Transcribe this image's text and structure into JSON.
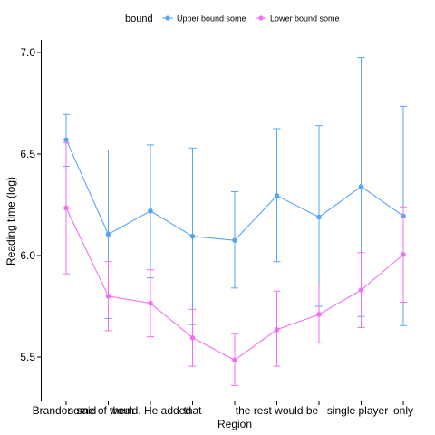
{
  "chart_data": {
    "type": "line",
    "xlabel": "Region",
    "ylabel": "Reading time (log)",
    "legend_title": "bound",
    "legend_position": "top",
    "grid": false,
    "ylim": [
      5.28,
      7.05
    ],
    "y_ticks": [
      "5.5",
      "6.0",
      "6.5",
      "7.0"
    ],
    "categories": [
      "Brandon said",
      "some of them",
      "would. He added",
      "that",
      "the rest would be",
      "single player",
      "only",
      "",
      ""
    ],
    "category_labels": [
      "Brandon said",
      "some of them",
      "would. He added",
      "that",
      "the rest would be",
      "single player",
      "only"
    ],
    "series": [
      {
        "name": "Upper bound some",
        "color": "#56a5f5",
        "values": [
          6.57,
          6.105,
          6.22,
          6.095,
          6.075,
          6.295,
          6.19,
          6.34,
          6.195
        ],
        "err_low": [
          6.44,
          5.69,
          5.89,
          5.66,
          5.84,
          5.97,
          5.75,
          5.7,
          5.655
        ],
        "err_high": [
          6.695,
          6.52,
          6.545,
          6.53,
          6.315,
          6.625,
          6.64,
          6.975,
          6.735
        ]
      },
      {
        "name": "Lower bound some",
        "color": "#f46ef4",
        "values": [
          6.235,
          5.8,
          5.765,
          5.595,
          5.485,
          5.635,
          5.71,
          5.83,
          6.005
        ],
        "err_low": [
          5.91,
          5.63,
          5.6,
          5.455,
          5.36,
          5.455,
          5.57,
          5.645,
          5.77
        ],
        "err_high": [
          6.555,
          5.97,
          5.93,
          5.735,
          5.615,
          5.825,
          5.855,
          6.015,
          6.24
        ]
      }
    ]
  }
}
